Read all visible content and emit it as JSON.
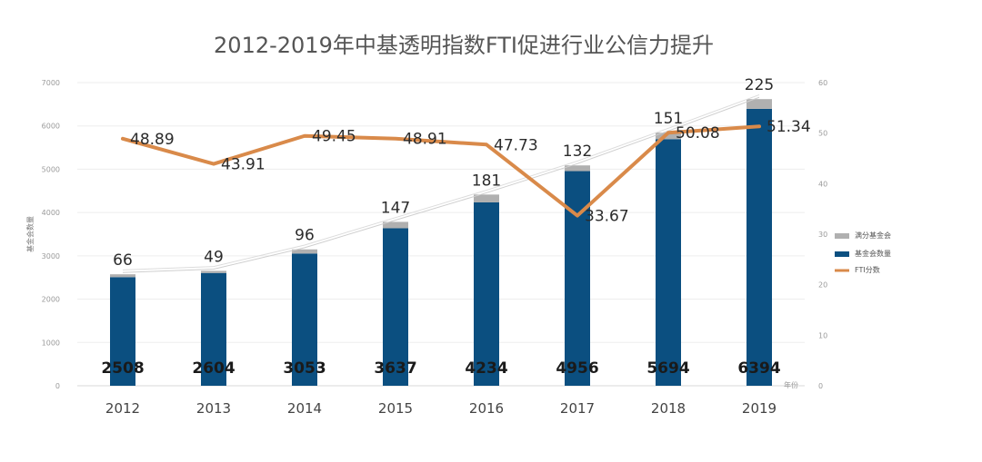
{
  "chart_data": {
    "type": "bar",
    "title": "2012-2019年中基透明指数FTI促进行业公信力提升",
    "categories": [
      "2012",
      "2013",
      "2014",
      "2015",
      "2016",
      "2017",
      "2018",
      "2019"
    ],
    "series": [
      {
        "name": "基金会数量",
        "type": "bar",
        "axis": "left",
        "values": [
          2508,
          2604,
          3053,
          3637,
          4234,
          4956,
          5694,
          6394
        ],
        "color": "#0b4f80"
      },
      {
        "name": "满分基金会",
        "type": "bar-stack",
        "axis": "left",
        "values": [
          66,
          49,
          96,
          147,
          181,
          132,
          151,
          225
        ],
        "color": "#b0b0b0"
      },
      {
        "name": "FTI分数",
        "type": "line",
        "axis": "right",
        "values": [
          48.89,
          43.91,
          49.45,
          48.91,
          47.73,
          33.67,
          50.08,
          51.34
        ],
        "color": "#d98a4a"
      }
    ],
    "left_axis": {
      "label": "基金会数量",
      "ticks": [
        0,
        1000,
        2000,
        3000,
        4000,
        5000,
        6000,
        7000
      ],
      "ylim": [
        0,
        7000
      ]
    },
    "right_axis": {
      "ticks": [
        0,
        10,
        20,
        30,
        40,
        50,
        60
      ],
      "ylim": [
        0,
        60
      ]
    },
    "x_axis_unit": "年份",
    "legend_position": "right",
    "grid": true
  }
}
